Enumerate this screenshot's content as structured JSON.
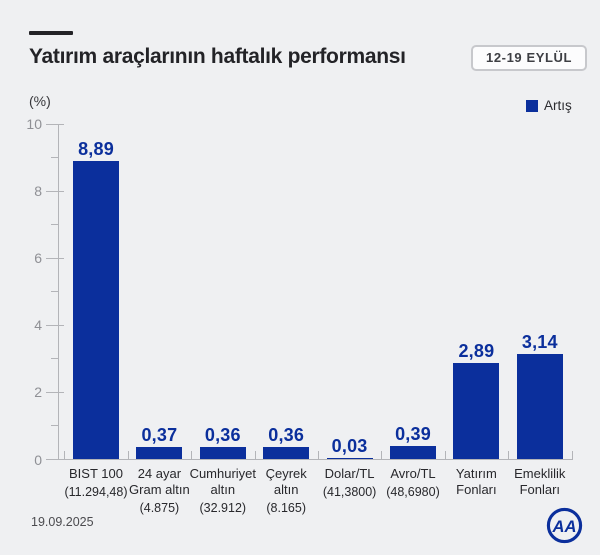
{
  "header": {
    "title": "Yatırım araçlarının haftalık performansı",
    "badge": "12-19 EYLÜL"
  },
  "legend": {
    "label": "Artış"
  },
  "footer": {
    "date": "19.09.2025",
    "logo_text": "AA"
  },
  "colors": {
    "bar": "#0b2f9c",
    "background": "#eff0f2",
    "title_text": "#232327",
    "axis_line": "#b3b4b8",
    "axis_label": "#8f9095",
    "category_text": "#28282c"
  },
  "chart_data": {
    "type": "bar",
    "title": "Yatırım araçlarının haftalık performansı",
    "subtitle_badge": "12-19 EYLÜL",
    "xlabel": "",
    "ylabel": "(%)",
    "ylim": [
      0,
      10
    ],
    "yticks_major": [
      0,
      2,
      4,
      6,
      8,
      10
    ],
    "yticks_minor": [
      1,
      3,
      5,
      7,
      9
    ],
    "grid": false,
    "legend_position": "top-right",
    "legend": [
      {
        "label": "Artış",
        "color": "#0b2f9c"
      }
    ],
    "categories": [
      {
        "name_lines": [
          "BIST 100"
        ],
        "detail": "(11.294,48)",
        "value": 8.89,
        "value_label": "8,89"
      },
      {
        "name_lines": [
          "24 ayar",
          "Gram altın"
        ],
        "detail": "(4.875)",
        "value": 0.37,
        "value_label": "0,37"
      },
      {
        "name_lines": [
          "Cumhuriyet",
          "altın"
        ],
        "detail": "(32.912)",
        "value": 0.36,
        "value_label": "0,36"
      },
      {
        "name_lines": [
          "Çeyrek",
          "altın"
        ],
        "detail": "(8.165)",
        "value": 0.36,
        "value_label": "0,36"
      },
      {
        "name_lines": [
          "Dolar/TL"
        ],
        "detail": "(41,3800)",
        "value": 0.03,
        "value_label": "0,03"
      },
      {
        "name_lines": [
          "Avro/TL"
        ],
        "detail": "(48,6980)",
        "value": 0.39,
        "value_label": "0,39"
      },
      {
        "name_lines": [
          "Yatırım",
          "Fonları"
        ],
        "detail": "",
        "value": 2.89,
        "value_label": "2,89"
      },
      {
        "name_lines": [
          "Emeklilik",
          "Fonları"
        ],
        "detail": "",
        "value": 3.14,
        "value_label": "3,14"
      }
    ]
  }
}
